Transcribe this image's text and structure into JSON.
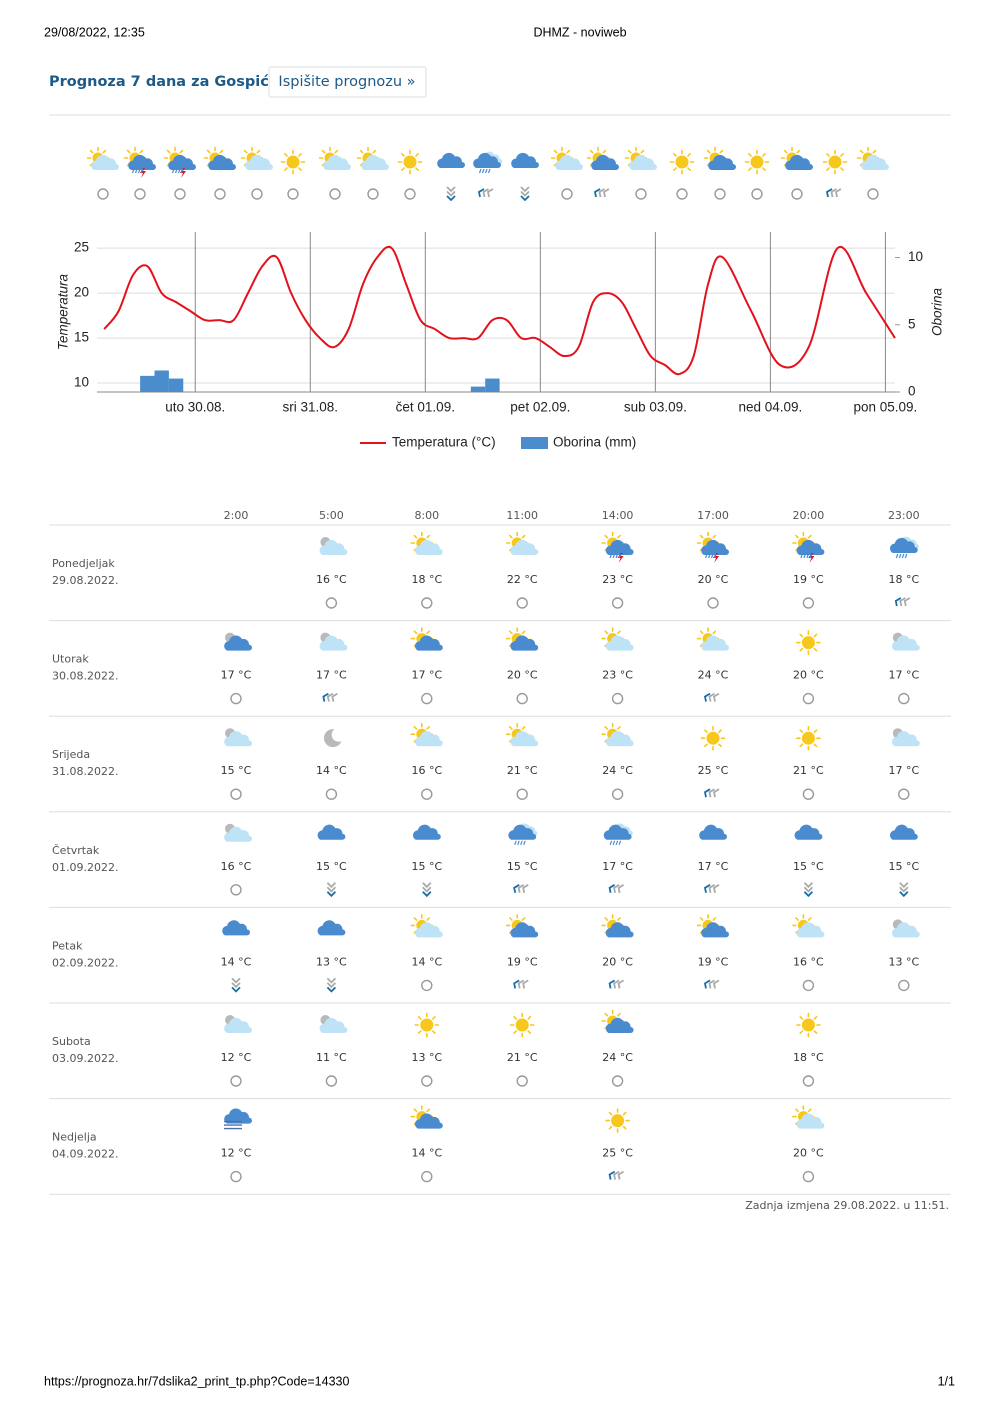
{
  "header": {
    "timestamp": "29/08/2022, 12:35",
    "site": "DHMZ - noviweb"
  },
  "title": "Prognoza 7 dana za Gospić",
  "button": "Ispišite prognozu »",
  "chart_data": {
    "type": "line",
    "y_label": "Temperatura",
    "y2_label": "Oborina",
    "xlim": [
      3.5,
      170
    ],
    "xticks": [
      {
        "value": 24,
        "label": "uto 30.08."
      },
      {
        "value": 48,
        "label": "sri 31.08."
      },
      {
        "value": 72,
        "label": "čet 01.09."
      },
      {
        "value": 96,
        "label": "pet 02.09."
      },
      {
        "value": 120,
        "label": "sub 03.09."
      },
      {
        "value": 144,
        "label": "ned 04.09."
      },
      {
        "value": 168,
        "label": "pon 05.09."
      }
    ],
    "ylim": [
      9,
      26.8
    ],
    "yticks": [
      10,
      15,
      20,
      25
    ],
    "y2lim": [
      0,
      11.9
    ],
    "y2ticks": [
      0,
      5,
      10
    ],
    "grid": true,
    "legend": "bottom",
    "series": [
      {
        "name": "Temperatura (°C)",
        "type": "line",
        "color": "#e3111b",
        "x": [
          5,
          8,
          11,
          14,
          17,
          20,
          23,
          26,
          29,
          32,
          35,
          38,
          41,
          44,
          47,
          50,
          53,
          56,
          59,
          62,
          65,
          68,
          71,
          74,
          77,
          80,
          83,
          86,
          89,
          92,
          95,
          98,
          101,
          104,
          107,
          110,
          113,
          116,
          119,
          122,
          125,
          128,
          131,
          134,
          140,
          146,
          152,
          158,
          164,
          170
        ],
        "values": [
          16,
          18,
          22,
          23,
          20,
          19,
          18,
          17,
          17,
          17,
          20,
          23,
          24,
          20,
          17,
          15,
          14,
          16,
          21,
          24,
          25,
          21,
          17,
          16,
          15,
          15,
          15,
          17,
          17,
          15,
          15,
          14,
          13,
          14,
          19,
          20,
          19,
          16,
          13,
          12,
          11,
          13,
          21,
          24,
          18,
          12,
          14,
          25,
          20,
          15
        ]
      },
      {
        "name": "Oborina (mm)",
        "type": "bar",
        "axis": "y2",
        "color": "#4a8ccc",
        "x": [
          14,
          17,
          20,
          83,
          86
        ],
        "values": [
          1.2,
          1.6,
          1.0,
          0.4,
          1.0
        ]
      }
    ]
  },
  "table": {
    "hours": [
      "2:00",
      "5:00",
      "8:00",
      "11:00",
      "14:00",
      "17:00",
      "20:00",
      "23:00"
    ],
    "rows": [
      {
        "day": "Ponedjeljak",
        "date": "29.08.2022.",
        "temps": [
          null,
          "16 °C",
          "18 °C",
          "22 °C",
          "23 °C",
          "20 °C",
          "19 °C",
          "18 °C"
        ]
      },
      {
        "day": "Utorak",
        "date": "30.08.2022.",
        "temps": [
          "17 °C",
          "17 °C",
          "17 °C",
          "20 °C",
          "23 °C",
          "24 °C",
          "20 °C",
          "17 °C"
        ]
      },
      {
        "day": "Srijeda",
        "date": "31.08.2022.",
        "temps": [
          "15 °C",
          "14 °C",
          "16 °C",
          "21 °C",
          "24 °C",
          "25 °C",
          "21 °C",
          "17 °C"
        ]
      },
      {
        "day": "Četvrtak",
        "date": "01.09.2022.",
        "temps": [
          "16 °C",
          "15 °C",
          "15 °C",
          "15 °C",
          "17 °C",
          "17 °C",
          "15 °C",
          "15 °C"
        ]
      },
      {
        "day": "Petak",
        "date": "02.09.2022.",
        "temps": [
          "14 °C",
          "13 °C",
          "14 °C",
          "19 °C",
          "20 °C",
          "19 °C",
          "16 °C",
          "13 °C"
        ]
      },
      {
        "day": "Subota",
        "date": "03.09.2022.",
        "temps": [
          "12 °C",
          "11 °C",
          "13 °C",
          "21 °C",
          "24 °C",
          null,
          "18 °C",
          null
        ]
      },
      {
        "day": "Nedjelja",
        "date": "04.09.2022.",
        "temps": [
          "12 °C",
          null,
          "14 °C",
          null,
          "25 °C",
          null,
          "20 °C",
          null
        ]
      }
    ]
  },
  "updated": "Zadnja izmjena 29.08.2022. u 11:51.",
  "footer": {
    "url": "https://prognoza.hr/7dslika2_print_tp.php?Code=14330",
    "page": "1/1"
  }
}
